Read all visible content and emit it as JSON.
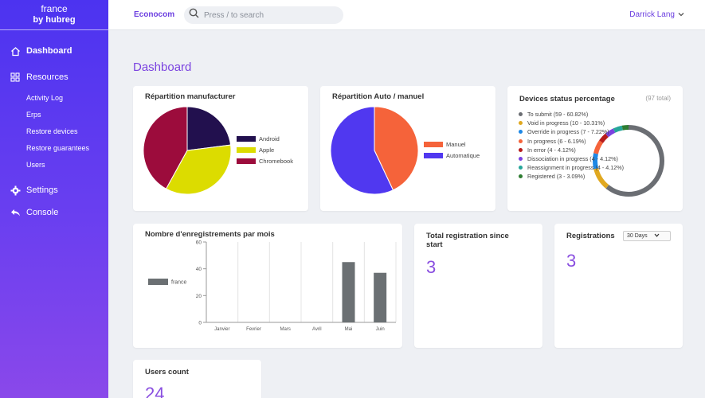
{
  "sidebar": {
    "brand_line1": "france",
    "brand_line2": "by hubreg",
    "dashboard": "Dashboard",
    "resources": "Resources",
    "sub_items": [
      "Activity Log",
      "Erps",
      "Restore devices",
      "Restore guarantees",
      "Users"
    ],
    "settings": "Settings",
    "console": "Console"
  },
  "topbar": {
    "company": "Econocom",
    "search_placeholder": "Press / to search",
    "user": "Darrick Lang"
  },
  "page": {
    "title": "Dashboard"
  },
  "manufacturer": {
    "title": "Répartition manufacturer",
    "legend": [
      {
        "label": "Android",
        "color": "#22104e"
      },
      {
        "label": "Apple",
        "color": "#dcdc00"
      },
      {
        "label": "Chromebook",
        "color": "#9c0c3c"
      }
    ]
  },
  "auto_manuel": {
    "title": "Répartition Auto / manuel",
    "legend": [
      {
        "label": "Manuel",
        "color": "#f5633a"
      },
      {
        "label": "Automatique",
        "color": "#5038f0"
      }
    ]
  },
  "status": {
    "title": "Devices status percentage",
    "total": "(97 total)",
    "items": [
      {
        "label": "To submit (59 - 60.82%)",
        "color": "#6b6e73",
        "pct": 60.82
      },
      {
        "label": "Void in progress (10 - 10.31%)",
        "color": "#e0a820",
        "pct": 10.31
      },
      {
        "label": "Override in progress (7 - 7.22%)",
        "color": "#1e88e5",
        "pct": 7.22
      },
      {
        "label": "In progress (6 - 6.19%)",
        "color": "#f5633a",
        "pct": 6.19
      },
      {
        "label": "In error (4 - 4.12%)",
        "color": "#b71c1c",
        "pct": 4.12
      },
      {
        "label": "Dissociation in progress (4 - 4.12%)",
        "color": "#7b43e0",
        "pct": 4.12
      },
      {
        "label": "Reassignment in progress (4 - 4.12%)",
        "color": "#26a69a",
        "pct": 4.12
      },
      {
        "label": "Registered (3 - 3.09%)",
        "color": "#2e7d32",
        "pct": 3.09
      }
    ]
  },
  "monthly": {
    "title": "Nombre d'enregistrements par mois"
  },
  "total_registration": {
    "title": "Total registration since start",
    "value": "3"
  },
  "registrations": {
    "title": "Registrations",
    "select_value": "30 Days",
    "value": "3"
  },
  "users_count": {
    "title": "Users count",
    "value": "24"
  },
  "chart_data": [
    {
      "type": "pie",
      "title": "Répartition manufacturer",
      "categories": [
        "Android",
        "Apple",
        "Chromebook"
      ],
      "values": [
        23,
        35,
        42
      ]
    },
    {
      "type": "pie",
      "title": "Répartition Auto / manuel",
      "categories": [
        "Manuel",
        "Automatique"
      ],
      "values": [
        43,
        57
      ]
    },
    {
      "type": "bar",
      "title": "Nombre d'enregistrements par mois",
      "categories": [
        "Janvier",
        "Fevrier",
        "Mars",
        "Avril",
        "Mai",
        "Juin"
      ],
      "series": [
        {
          "name": "france",
          "values": [
            0,
            0,
            0,
            0,
            45,
            37
          ]
        }
      ],
      "yticks": [
        "0",
        "20",
        "40",
        "60"
      ],
      "ylim": [
        0,
        60
      ],
      "legend": "left"
    }
  ]
}
